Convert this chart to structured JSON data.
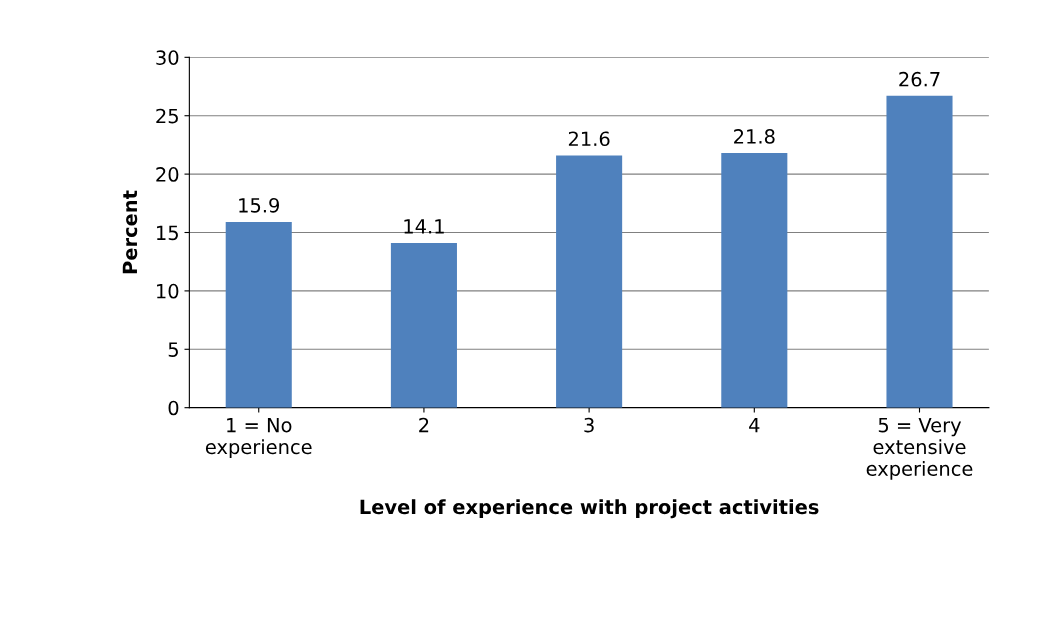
{
  "chart_data": {
    "type": "bar",
    "xlabel": "Level of experience with project activities",
    "ylabel": "Percent",
    "categories": [
      "1 = No\nexperience",
      "2",
      "3",
      "4",
      "5 = Very\nextensive\nexperience"
    ],
    "values": [
      15.9,
      14.1,
      21.6,
      21.8,
      26.7
    ],
    "color": "#4f81bd",
    "ylim": [
      0,
      30
    ],
    "yticks": [
      0,
      5,
      10,
      15,
      20,
      25,
      30
    ],
    "grid": "y",
    "data_labels": true,
    "legend": false
  }
}
